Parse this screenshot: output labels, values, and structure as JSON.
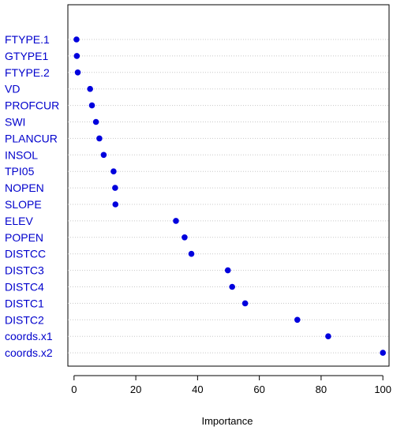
{
  "chart_data": {
    "type": "scatter",
    "xlabel": "Importance",
    "ylabel": "",
    "xlim": [
      -2,
      102
    ],
    "xticks": [
      0,
      20,
      40,
      60,
      80,
      100
    ],
    "grid": "horizontal dotted",
    "point_color": "#0000dd",
    "label_color": "#0000cc",
    "categories": [
      "FTYPE.1",
      "GTYPE1",
      "FTYPE.2",
      "VD",
      "PROFCUR",
      "SWI",
      "PLANCUR",
      "INSOL",
      "TPI05",
      "NOPEN",
      "SLOPE",
      "ELEV",
      "POPEN",
      "DISTCC",
      "DISTC3",
      "DISTC4",
      "DISTC1",
      "DISTC2",
      "coords.x1",
      "coords.x2"
    ],
    "values": [
      0.8,
      0.9,
      1.2,
      5.2,
      5.8,
      7.1,
      8.2,
      9.6,
      12.8,
      13.3,
      13.4,
      33.0,
      35.8,
      38.0,
      49.8,
      51.2,
      55.4,
      72.3,
      82.3,
      100.0
    ]
  }
}
